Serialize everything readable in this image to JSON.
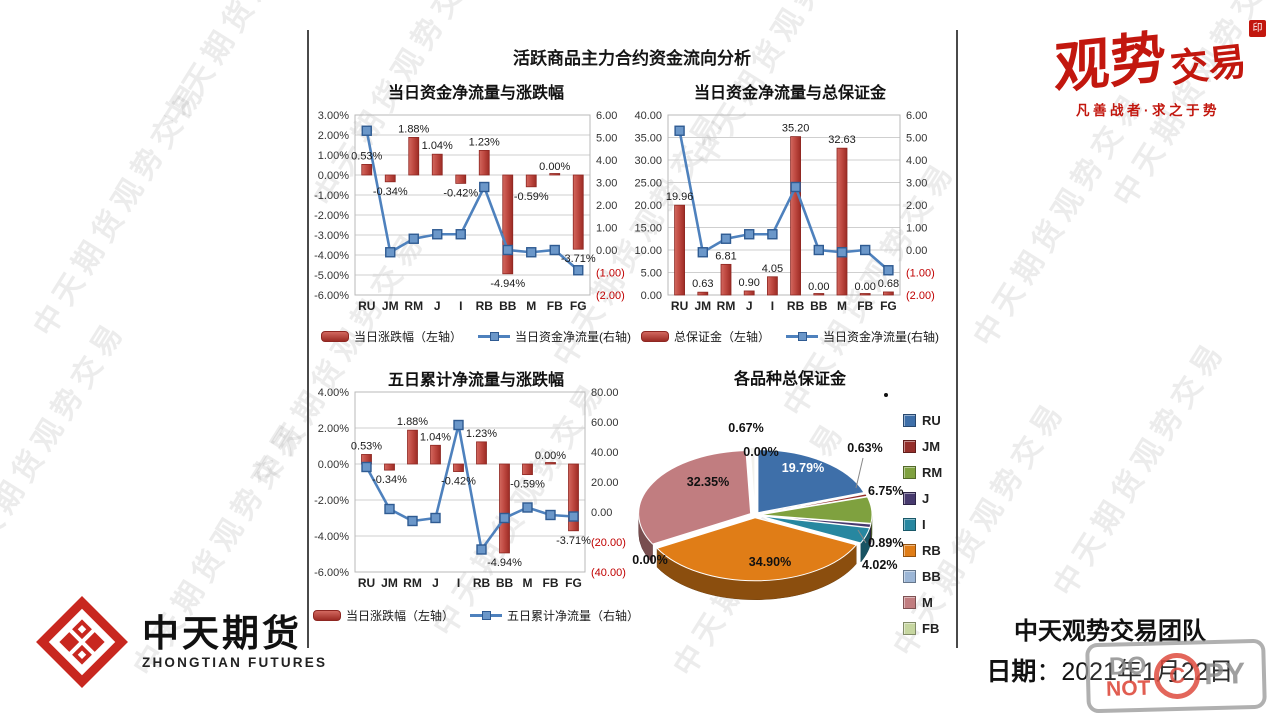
{
  "page": {
    "main_title": "活跃商品主力合约资金流向分析",
    "watermark_text": "中天期货观势交易"
  },
  "branding": {
    "top_logo": {
      "part1": "观势",
      "part2": "交易",
      "seal": "印",
      "tagline": "凡善战者·求之于势",
      "color": "#C2170E"
    },
    "bottom_logo": {
      "cn": "中天期货",
      "en": "ZHONGTIAN FUTURES"
    },
    "team": "中天观势交易团队",
    "date": {
      "label": "日期",
      "colon": "：",
      "value": "2021年1月22日"
    },
    "stamp": {
      "word1": "DO",
      "word2": "NOT",
      "circled": "C",
      "word3": "PY"
    }
  },
  "colors": {
    "bar": "#BE4040",
    "bar_dark": "#8E2722",
    "line": "#4E81BD",
    "negative_tick": "#C00000"
  },
  "chart_data": [
    {
      "id": "daily-net-flow-vs-change",
      "type": "bar+line",
      "title": "当日资金净流量与涨跌幅",
      "categories": [
        "RU",
        "JM",
        "RM",
        "J",
        "I",
        "RB",
        "BB",
        "M",
        "FB",
        "FG"
      ],
      "bar_series": {
        "name": "当日涨跌幅（左轴）",
        "axis": "left",
        "values": [
          0.53,
          -0.34,
          1.88,
          1.04,
          -0.42,
          1.23,
          -4.94,
          -0.59,
          0,
          -3.71
        ],
        "labels": [
          "0.53%",
          "-0.34%",
          "1.88%",
          "1.04%",
          "-0.42%",
          "1.23%",
          "-4.94%",
          "-0.59%",
          "0.00%",
          "-3.71%"
        ]
      },
      "line_series": {
        "name": "当日资金净流量(右轴)",
        "axis": "right",
        "values": [
          5.3,
          -0.1,
          0.5,
          0.7,
          0.7,
          2.8,
          0,
          -0.1,
          0,
          -0.9
        ]
      },
      "left_axis": {
        "min": -6,
        "max": 3,
        "ticks": [
          "3.00%",
          "2.00%",
          "1.00%",
          "0.00%",
          "-1.00%",
          "-2.00%",
          "-3.00%",
          "-4.00%",
          "-5.00%",
          "-6.00%"
        ]
      },
      "right_axis": {
        "min": -2,
        "max": 6,
        "ticks": [
          "6.00",
          "5.00",
          "4.00",
          "3.00",
          "2.00",
          "1.00",
          "0.00",
          "(1.00)",
          "(2.00)"
        ]
      }
    },
    {
      "id": "daily-net-flow-vs-margin",
      "type": "bar+line",
      "title": "当日资金净流量与总保证金",
      "categories": [
        "RU",
        "JM",
        "RM",
        "J",
        "I",
        "RB",
        "BB",
        "M",
        "FB",
        "FG"
      ],
      "bar_series": {
        "name": "总保证金（左轴）",
        "axis": "left",
        "values": [
          19.96,
          0.63,
          6.81,
          0.9,
          4.05,
          35.2,
          0,
          32.63,
          0,
          0.68
        ],
        "labels": [
          "19.96",
          "0.63",
          "6.81",
          "0.90",
          "4.05",
          "35.20",
          "0.00",
          "32.63",
          "0.00",
          "0.68"
        ]
      },
      "line_series": {
        "name": "当日资金净流量(右轴)",
        "axis": "right",
        "values": [
          5.3,
          -0.1,
          0.5,
          0.7,
          0.7,
          2.8,
          0,
          -0.1,
          0,
          -0.9
        ]
      },
      "left_axis": {
        "min": 0,
        "max": 40,
        "ticks": [
          "40.00",
          "35.00",
          "30.00",
          "25.00",
          "20.00",
          "15.00",
          "10.00",
          "5.00",
          "0.00"
        ]
      },
      "right_axis": {
        "min": -2,
        "max": 6,
        "ticks": [
          "6.00",
          "5.00",
          "4.00",
          "3.00",
          "2.00",
          "1.00",
          "0.00",
          "(1.00)",
          "(2.00)"
        ]
      }
    },
    {
      "id": "five-day-net-flow-vs-change",
      "type": "bar+line",
      "title": "五日累计净流量与涨跌幅",
      "categories": [
        "RU",
        "JM",
        "RM",
        "J",
        "I",
        "RB",
        "BB",
        "M",
        "FB",
        "FG"
      ],
      "bar_series": {
        "name": "当日涨跌幅（左轴）",
        "axis": "left",
        "values": [
          0.53,
          -0.34,
          1.88,
          1.04,
          -0.42,
          1.23,
          -4.94,
          -0.59,
          0,
          -3.71
        ],
        "labels": [
          "0.53%",
          "-0.34%",
          "1.88%",
          "1.04%",
          "-0.42%",
          "1.23%",
          "-4.94%",
          "-0.59%",
          "0.00%",
          "-3.71%"
        ]
      },
      "line_series": {
        "name": "五日累计净流量（右轴）",
        "axis": "right",
        "values": [
          30,
          2,
          -6,
          -4,
          58,
          -25,
          -4,
          3,
          -2,
          -3
        ]
      },
      "left_axis": {
        "min": -6,
        "max": 4,
        "ticks": [
          "4.00%",
          "2.00%",
          "0.00%",
          "-2.00%",
          "-4.00%",
          "-6.00%"
        ]
      },
      "right_axis": {
        "min": -40,
        "max": 80,
        "ticks": [
          "80.00",
          "60.00",
          "40.00",
          "20.00",
          "0.00",
          "(20.00)",
          "(40.00)"
        ]
      }
    },
    {
      "id": "margin-by-product",
      "type": "pie3d",
      "title": "各品种总保证金",
      "slices": [
        {
          "label": "RU",
          "value": 19.79,
          "text": "19.79%",
          "color": "#3E6FA9"
        },
        {
          "label": "JM",
          "value": 0.63,
          "text": "0.63%",
          "color": "#952F2B"
        },
        {
          "label": "RM",
          "value": 6.75,
          "text": "6.75%",
          "color": "#7FA13F"
        },
        {
          "label": "J",
          "value": 0.89,
          "text": "0.89%",
          "color": "#473A6E"
        },
        {
          "label": "I",
          "value": 4.02,
          "text": "4.02%",
          "color": "#2787A0"
        },
        {
          "label": "RB",
          "value": 34.9,
          "text": "34.90%",
          "color": "#E07D17"
        },
        {
          "label": "BB",
          "value": 0.0,
          "text": "0.00%",
          "color": "#9CB6D6"
        },
        {
          "label": "M",
          "value": 32.35,
          "text": "32.35%",
          "color": "#C17D80"
        },
        {
          "label": "FB",
          "value": 0.0,
          "text": "0.00%",
          "color": "#C6D6A0"
        },
        {
          "label": "FG",
          "value": 0.67,
          "text": "0.67%",
          "color": "#F2F1EC"
        }
      ],
      "legend": [
        "RU",
        "JM",
        "RM",
        "J",
        "I",
        "RB",
        "BB",
        "M",
        "FB"
      ]
    }
  ]
}
